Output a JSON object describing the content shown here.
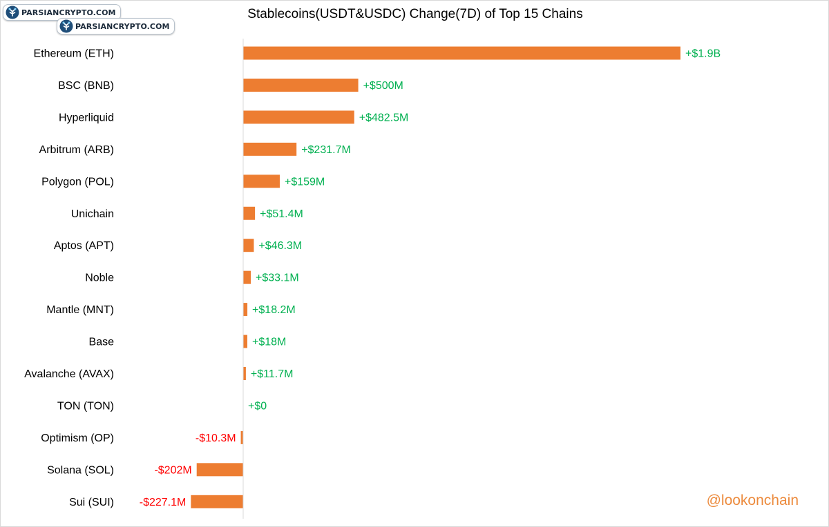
{
  "watermarks": [
    "PARSIANCRYPTO.COM",
    "PARSIANCRYPTO.COM"
  ],
  "credit": "@lookonchain",
  "colors": {
    "bar": "#ed7d31",
    "positive_label": "#00b050",
    "negative_label": "#ff0000",
    "axis": "#d9d9d9",
    "credit": "#ec8a3c"
  },
  "chart_data": {
    "type": "bar",
    "orientation": "horizontal",
    "title": "Stablecoins(USDT&USDC) Change(7D)  of Top 15 Chains",
    "xlabel": "",
    "ylabel": "",
    "unit": "USD millions",
    "grid": false,
    "legend": "none",
    "xlim": [
      -600,
      2000
    ],
    "categories": [
      "Ethereum (ETH)",
      "BSC (BNB)",
      "Hyperliquid",
      "Arbitrum (ARB)",
      "Polygon (POL)",
      "Unichain",
      "Aptos (APT)",
      "Noble",
      "Mantle (MNT)",
      "Base",
      "Avalanche (AVAX)",
      "TON (TON)",
      "Optimism (OP)",
      "Solana (SOL)",
      "Sui (SUI)"
    ],
    "values": [
      1900,
      500,
      482.5,
      231.7,
      159,
      51.4,
      46.3,
      33.1,
      18.2,
      18,
      11.7,
      0,
      -10.3,
      -202,
      -227.1
    ],
    "data_labels": [
      "+$1.9B",
      "+$500M",
      "+$482.5M",
      "+$231.7M",
      "+$159M",
      "+$51.4M",
      "+$46.3M",
      "+$33.1M",
      "+$18.2M",
      "+$18M",
      "+$11.7M",
      "+$0",
      "-$10.3M",
      "-$202M",
      "-$227.1M"
    ]
  }
}
